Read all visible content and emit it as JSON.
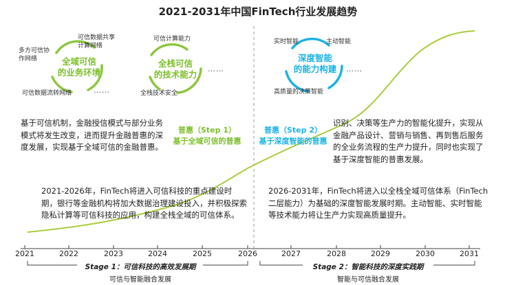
{
  "title": "2021-2031年中国FinTech行业发展趋势",
  "circles": {
    "c1": {
      "text": [
        "全域可信",
        "的业务环境"
      ],
      "labels": [
        "可信数据共享计算网络",
        "多方可信协作网络",
        "可信数据流转网络"
      ]
    },
    "c2": {
      "text": [
        "全栈可信",
        "的技术能力"
      ],
      "labels": [
        "可信计算能力",
        "全栈技术安全"
      ]
    },
    "c3": {
      "text": [
        "深度智能",
        "的能力构建"
      ],
      "labels": [
        "实时智能",
        "主动智能",
        "高质量的决策智能"
      ]
    },
    "ellipsis": "……"
  },
  "steps": {
    "s1": {
      "line1": "普惠（Step 1）",
      "line2": "基于全域可信的普惠"
    },
    "s2": {
      "line1": "普惠（Step 2）",
      "line2": "基于深度智能的普惠"
    }
  },
  "paragraphs": {
    "left_top": "基于可信机制，金融授信模式与部分业务模式将发生改变，进而提升金融普惠的深度发展，实现基于全域可信的金融普惠。",
    "right_top": "识别、决策等生产力的智能化提升，实现从金融产品设计、营销与销售、再到售后服务的全业务流程的生产力提升，同时也实现了基于深度智能的普惠发展。",
    "left_bottom": "2021-2026年，FinTech将进入可信科技的重点建设时期，银行等金融机构将加大数据治理建设投入，并积极探索隐私计算等可信科技的应用，构建全栈全域的可信体系。",
    "right_bottom": "2026-2031年，FinTech将进入以全栈全域可信体系（FinTech二层能力）为基础的深度智能发展时期。主动智能、实时智能等技术能力将让生产力实现高质量提升。"
  },
  "axis": {
    "years": [
      "2021",
      "2022",
      "2023",
      "2024",
      "2025",
      "2026",
      "2027",
      "2028",
      "2029",
      "2030",
      "2031"
    ]
  },
  "stages": {
    "s1": {
      "title": "Stage 1：可信科技的高效发展期",
      "sub": "可信与智能融合发展"
    },
    "s2": {
      "title": "Stage 2：智能科技的深度实践期",
      "sub": "智能与可信融合发展"
    }
  },
  "colors": {
    "green": "#8dc63f",
    "blue": "#1bb3e6",
    "curve": "#a8cc3c",
    "divider": "#999999"
  }
}
